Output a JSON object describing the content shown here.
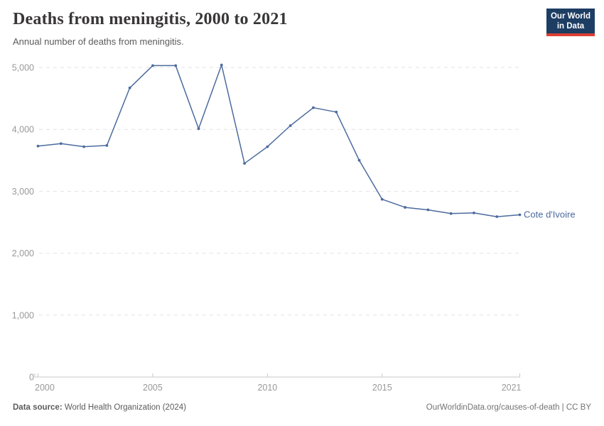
{
  "header": {
    "title": "Deaths from meningitis, 2000 to 2021",
    "subtitle": "Annual number of deaths from meningitis.",
    "logo": {
      "line1": "Our World",
      "line2": "in Data"
    }
  },
  "chart_data": {
    "type": "line",
    "title": "Deaths from meningitis, 2000 to 2021",
    "xlabel": "",
    "ylabel": "",
    "x": [
      2000,
      2001,
      2002,
      2003,
      2004,
      2005,
      2006,
      2007,
      2008,
      2009,
      2010,
      2011,
      2012,
      2013,
      2014,
      2015,
      2016,
      2017,
      2018,
      2019,
      2020,
      2021
    ],
    "series": [
      {
        "name": "Cote d'Ivoire",
        "color": "#4c6b9e",
        "values": [
          3730,
          3770,
          3720,
          3740,
          4670,
          5030,
          5030,
          4010,
          5040,
          3450,
          3720,
          4060,
          4350,
          4280,
          3500,
          2870,
          2740,
          2700,
          2640,
          2650,
          2590,
          2620
        ]
      }
    ],
    "xlim": [
      2000,
      2021
    ],
    "ylim": [
      0,
      5000
    ],
    "y_ticks": [
      0,
      1000,
      2000,
      3000,
      4000,
      5000
    ],
    "x_tick_labels": [
      2000,
      2005,
      2010,
      2015,
      2021
    ],
    "grid": "horizontal-dashed",
    "legend_position": "end-of-line",
    "end_label": "Cote d'Ivoire"
  },
  "footer": {
    "source_label": "Data source:",
    "source_text": " World Health Organization (2024)",
    "credit": "OurWorldinData.org/causes-of-death | CC BY"
  },
  "colors": {
    "line": "#4c6b9e",
    "grid": "#e2e2e2",
    "axis": "#c8c8c8",
    "tick_text": "#999999",
    "logo_bg": "#1d3d63",
    "logo_stripe": "#dc3e34"
  }
}
